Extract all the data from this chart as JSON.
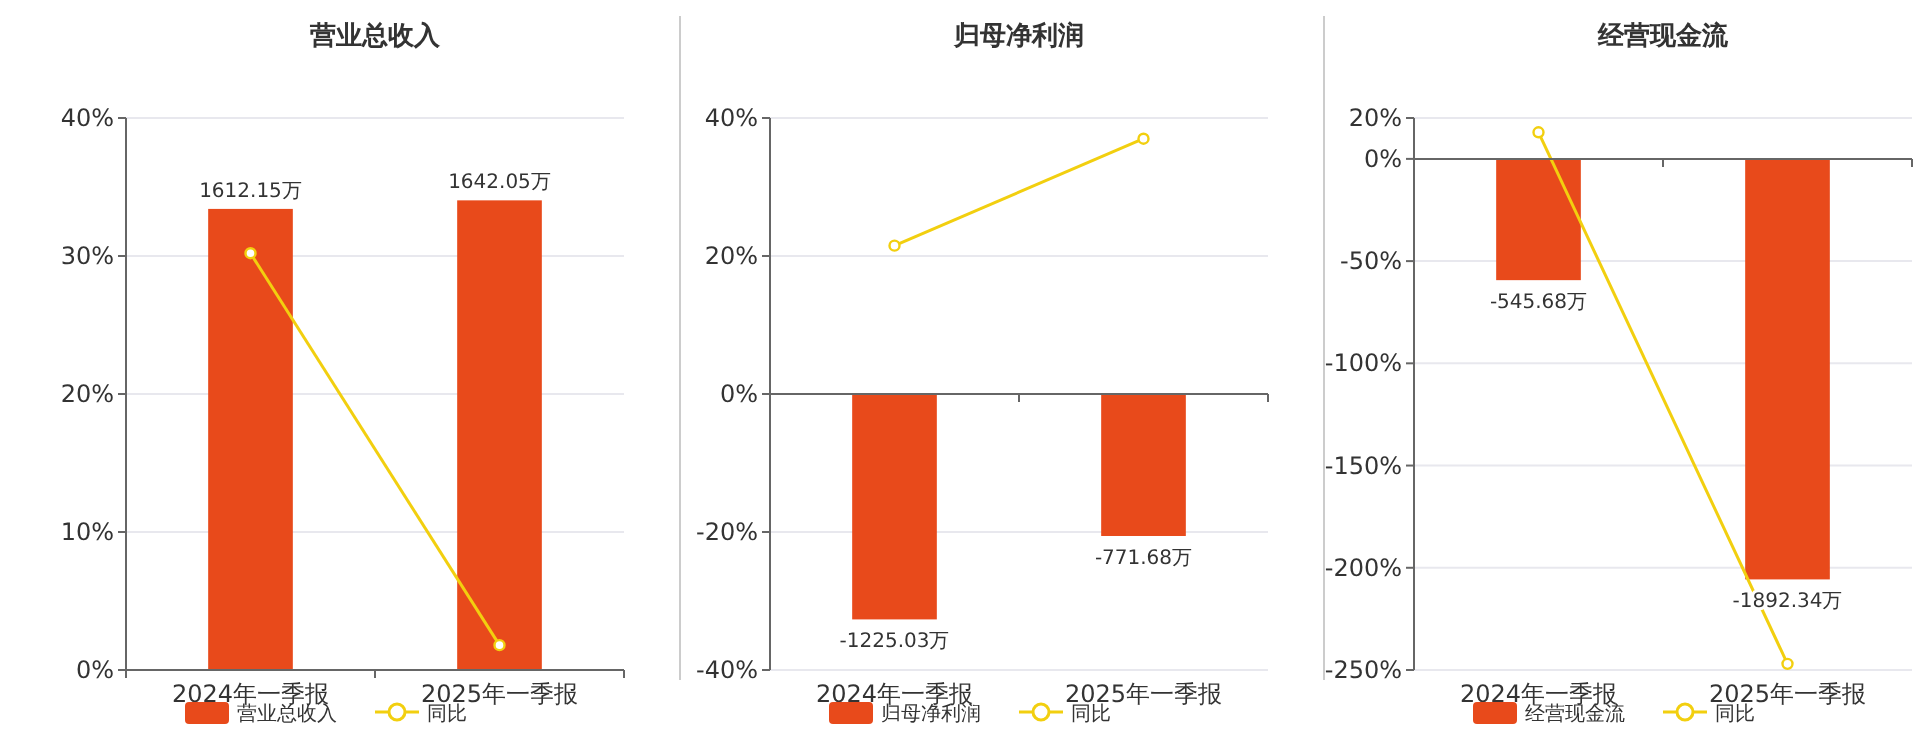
{
  "chart_data": [
    {
      "type": "bar",
      "title": "营业总收入",
      "categories": [
        "2024年一季报",
        "2025年一季报"
      ],
      "ylim": [
        0,
        40
      ],
      "yticks": [
        {
          "value": 0,
          "label": "0%"
        },
        {
          "value": 10,
          "label": "10%"
        },
        {
          "value": 20,
          "label": "20%"
        },
        {
          "value": 30,
          "label": "30%"
        },
        {
          "value": 40,
          "label": "40%"
        }
      ],
      "y2lim": [
        0,
        1930
      ],
      "grid": "y",
      "legend": "bottom",
      "series": [
        {
          "name": "营业总收入",
          "axis": "y2",
          "color": "#e84a1b",
          "values": [
            1612.15,
            1642.05
          ],
          "value_labels": [
            "1612.15万",
            "1642.05万"
          ]
        },
        {
          "name": "同比",
          "type": "line",
          "color": "#f2cf0f",
          "marker": "circle",
          "values": [
            30.2,
            1.8
          ]
        }
      ]
    },
    {
      "type": "bar",
      "title": "归母净利润",
      "categories": [
        "2024年一季报",
        "2025年一季报"
      ],
      "ylim": [
        -40,
        40
      ],
      "yticks": [
        {
          "value": -40,
          "label": "-40%"
        },
        {
          "value": -20,
          "label": "-20%"
        },
        {
          "value": 0,
          "label": "0%"
        },
        {
          "value": 20,
          "label": "20%"
        },
        {
          "value": 40,
          "label": "40%"
        }
      ],
      "y2lim": [
        -1500,
        1500
      ],
      "grid": "y",
      "legend": "bottom",
      "series": [
        {
          "name": "归母净利润",
          "axis": "y2",
          "color": "#e84a1b",
          "values": [
            -1225.03,
            -771.68
          ],
          "value_labels": [
            "-1225.03万",
            "-771.68万"
          ]
        },
        {
          "name": "同比",
          "type": "line",
          "color": "#f2cf0f",
          "marker": "circle",
          "values": [
            21.5,
            37
          ]
        }
      ]
    },
    {
      "type": "bar",
      "title": "经营现金流",
      "categories": [
        "2024年一季报",
        "2025年一季报"
      ],
      "ylim": [
        -250,
        20
      ],
      "yticks": [
        {
          "value": -250,
          "label": "-250%"
        },
        {
          "value": -200,
          "label": "-200%"
        },
        {
          "value": -150,
          "label": "-150%"
        },
        {
          "value": -100,
          "label": "-100%"
        },
        {
          "value": -50,
          "label": "-50%"
        },
        {
          "value": 0,
          "label": "0%"
        },
        {
          "value": 20,
          "label": "20%"
        }
      ],
      "y2lim": [
        -2300,
        184
      ],
      "grid": "y",
      "legend": "bottom",
      "series": [
        {
          "name": "经营现金流",
          "axis": "y2",
          "color": "#e84a1b",
          "values": [
            -545.68,
            -1892.34
          ],
          "value_labels": [
            "-545.68万",
            "-1892.34万"
          ]
        },
        {
          "name": "同比",
          "type": "line",
          "color": "#f2cf0f",
          "marker": "circle",
          "values": [
            13,
            -247
          ]
        }
      ]
    }
  ]
}
